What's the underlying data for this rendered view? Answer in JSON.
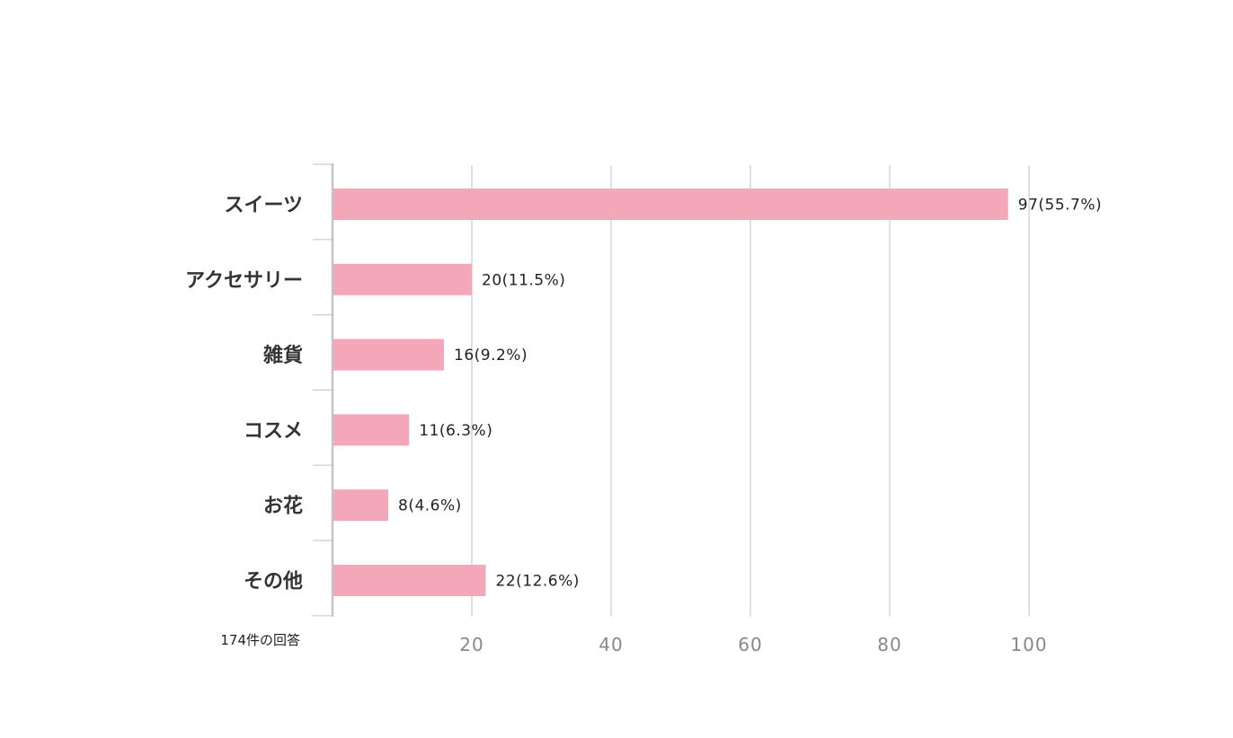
{
  "chart_data": {
    "type": "bar",
    "orientation": "horizontal",
    "categories": [
      "スイーツ",
      "アクセサリー",
      "雑貨",
      "コスメ",
      "お花",
      "その他"
    ],
    "values": [
      97,
      20,
      16,
      11,
      8,
      22
    ],
    "data_labels": [
      "97(55.7%)",
      "20(11.5%)",
      "16(9.2%)",
      "11(6.3%)",
      "8(4.6%)",
      "22(12.6%)"
    ],
    "xticks": [
      "20",
      "40",
      "60",
      "80",
      "100"
    ],
    "xtick_values": [
      20,
      40,
      60,
      80,
      100
    ],
    "xlim": [
      0,
      115
    ],
    "grid": true,
    "note": "174件の回答",
    "bar_color": "#f4a7b9",
    "grid_color": "#cccccc"
  }
}
